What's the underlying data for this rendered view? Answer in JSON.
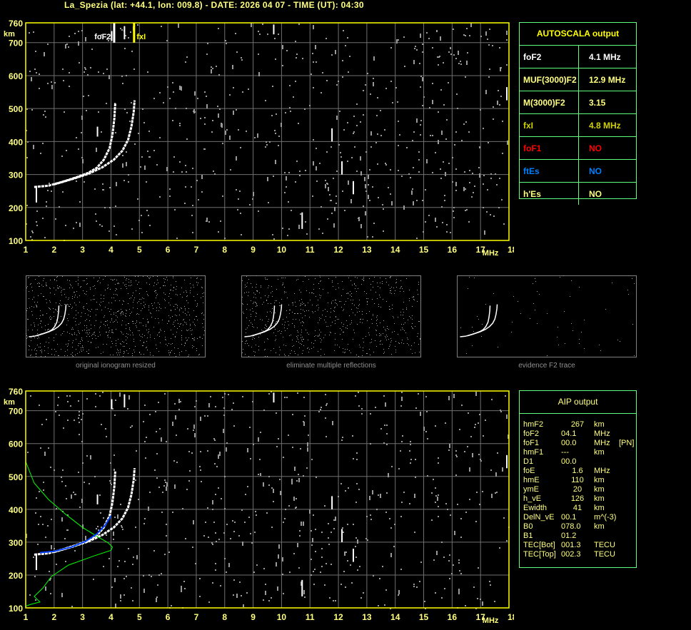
{
  "header": {
    "title": "La_Spezia (lat: +44.1, lon: 009.8) - DATE: 2026 04 07 - TIME (UT): 04:30"
  },
  "axes": {
    "y_unit": "km",
    "x_unit": "MHz",
    "y_ticks": [
      "760",
      "700",
      "600",
      "500",
      "400",
      "300",
      "200",
      "100"
    ],
    "x_ticks": [
      "1",
      "2",
      "3",
      "4",
      "5",
      "6",
      "7",
      "8",
      "9",
      "10",
      "11",
      "12",
      "13",
      "14",
      "15",
      "16",
      "17",
      "18"
    ],
    "xlim": [
      1,
      18
    ],
    "ylim": [
      100,
      760
    ]
  },
  "top_plot": {
    "foF2_marker_label": "foF2",
    "foF2_mhz": 4.1,
    "fxI_marker_label": "fxI",
    "fxI_mhz": 4.8,
    "marker_color": "#ffff00"
  },
  "traces": {
    "o_trace": [
      [
        1.3,
        262
      ],
      [
        1.8,
        266
      ],
      [
        2.3,
        278
      ],
      [
        2.8,
        292
      ],
      [
        3.2,
        305
      ],
      [
        3.5,
        320
      ],
      [
        3.75,
        345
      ],
      [
        3.95,
        380
      ],
      [
        4.05,
        420
      ],
      [
        4.12,
        470
      ],
      [
        4.15,
        515
      ]
    ],
    "x_trace": [
      [
        2.0,
        270
      ],
      [
        2.6,
        285
      ],
      [
        3.2,
        302
      ],
      [
        3.7,
        322
      ],
      [
        4.1,
        345
      ],
      [
        4.4,
        372
      ],
      [
        4.6,
        405
      ],
      [
        4.72,
        445
      ],
      [
        4.8,
        490
      ],
      [
        4.83,
        525
      ]
    ],
    "aip_profile_green": [
      [
        1.0,
        545
      ],
      [
        1.3,
        480
      ],
      [
        1.8,
        430
      ],
      [
        2.4,
        385
      ],
      [
        3.0,
        345
      ],
      [
        3.5,
        318
      ],
      [
        3.9,
        298
      ],
      [
        4.05,
        285
      ],
      [
        4.0,
        275
      ],
      [
        3.4,
        258
      ],
      [
        2.5,
        230
      ],
      [
        1.9,
        195
      ],
      [
        1.6,
        160
      ],
      [
        1.3,
        135
      ],
      [
        1.5,
        118
      ],
      [
        1.15,
        110
      ],
      [
        1.0,
        105
      ]
    ],
    "aip_fit_blue": [
      [
        1.5,
        268
      ],
      [
        2.0,
        272
      ],
      [
        2.6,
        285
      ],
      [
        3.1,
        302
      ],
      [
        3.5,
        325
      ],
      [
        3.8,
        352
      ],
      [
        4.0,
        380
      ]
    ],
    "trace_color": "#ffffff",
    "profile_color": "#00ff00",
    "fit_color": "#0040ff"
  },
  "thumbnails": [
    {
      "caption": "original ionogram resized"
    },
    {
      "caption": "eliminate multiple reflections"
    },
    {
      "caption": "evidence F2 trace"
    }
  ],
  "autoscala": {
    "title": "AUTOSCALA output",
    "rows": [
      {
        "label": "foF2",
        "value": "4.1 MHz",
        "color": "#ffffff"
      },
      {
        "label": "MUF(3000)F2",
        "value": "12.9 MHz",
        "color": "#ffff80"
      },
      {
        "label": "M(3000)F2",
        "value": "3.15",
        "color": "#ffff80"
      },
      {
        "label": "fxI",
        "value": "4.8 MHz",
        "color": "#d0d000"
      },
      {
        "label": "foF1",
        "value": "NO",
        "color": "#ff0000"
      },
      {
        "label": "ftEs",
        "value": "NO",
        "color": "#0080ff"
      },
      {
        "label": "h'Es",
        "value": "NO",
        "color": "#ffff80"
      }
    ]
  },
  "aip": {
    "title": "AIP output",
    "rows": [
      {
        "label": "hmF2",
        "value": "267",
        "unit": "km",
        "extra": ""
      },
      {
        "label": "foF2",
        "value": "04.1",
        "unit": "MHz",
        "extra": ""
      },
      {
        "label": "foF1",
        "value": "00.0",
        "unit": "MHz",
        "extra": "[PN]"
      },
      {
        "label": "hmF1",
        "value": "---",
        "unit": "km",
        "extra": ""
      },
      {
        "label": "D1",
        "value": "00.0",
        "unit": "",
        "extra": ""
      },
      {
        "label": "foE",
        "value": "1.6",
        "unit": "MHz",
        "extra": ""
      },
      {
        "label": "hmE",
        "value": "110",
        "unit": "km",
        "extra": ""
      },
      {
        "label": "ymE",
        "value": "20",
        "unit": "km",
        "extra": ""
      },
      {
        "label": "h_vE",
        "value": "126",
        "unit": "km",
        "extra": ""
      },
      {
        "label": "Ewidth",
        "value": "41",
        "unit": "km",
        "extra": ""
      },
      {
        "label": "DelN_vE",
        "value": "00.1",
        "unit": "m^(-3)",
        "extra": ""
      },
      {
        "label": "B0",
        "value": "078.0",
        "unit": "km",
        "extra": ""
      },
      {
        "label": "B1",
        "value": "01.2",
        "unit": "",
        "extra": ""
      },
      {
        "label": "TEC[Bot]",
        "value": "001.3",
        "unit": "TECU",
        "extra": ""
      },
      {
        "label": "TEC[Top]",
        "value": "002.3",
        "unit": "TECU",
        "extra": ""
      }
    ]
  }
}
